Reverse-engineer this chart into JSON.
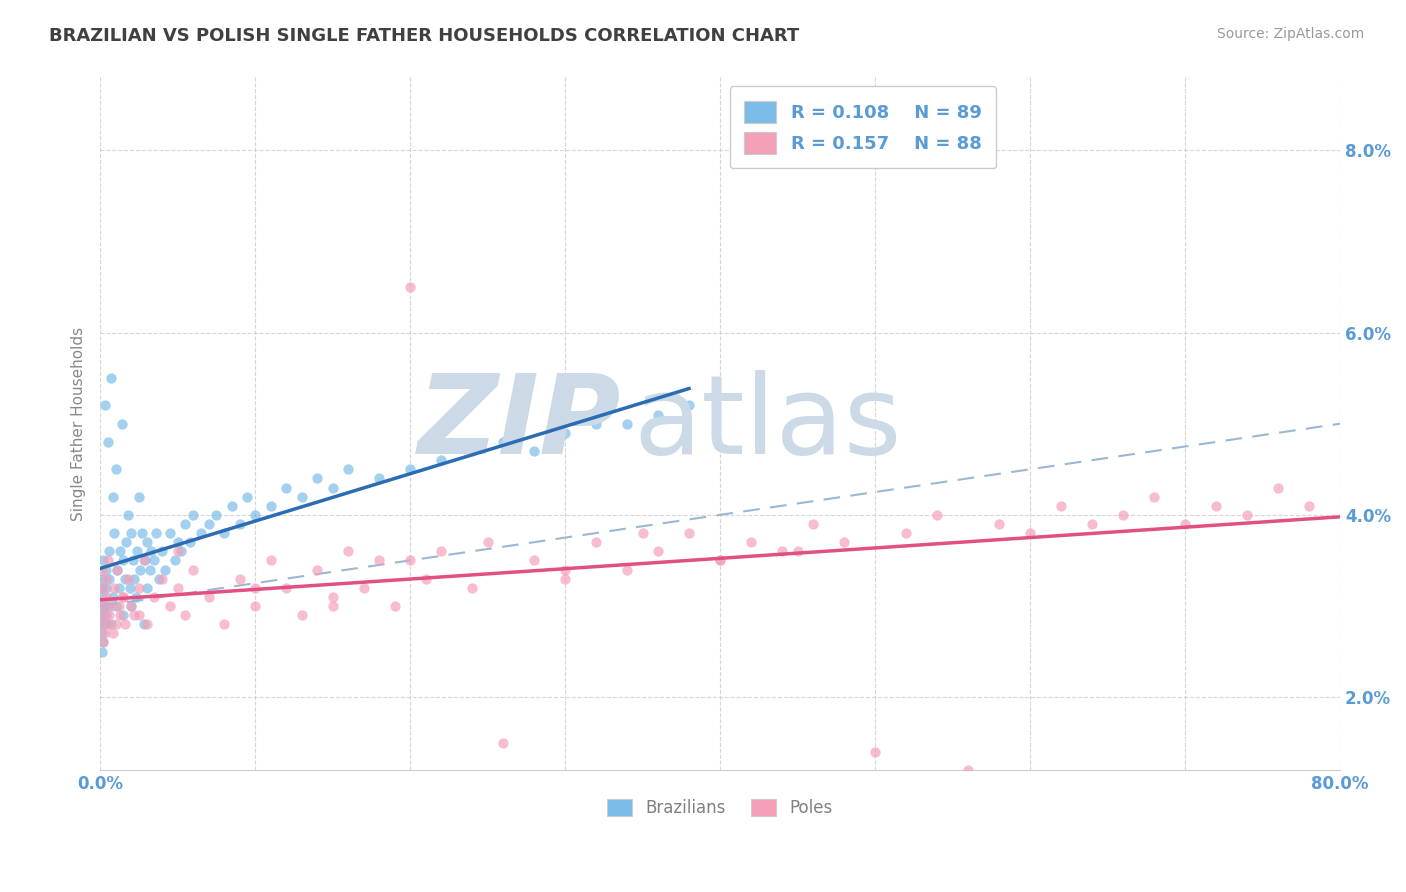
{
  "title": "BRAZILIAN VS POLISH SINGLE FATHER HOUSEHOLDS CORRELATION CHART",
  "source": "Source: ZipAtlas.com",
  "ylabel": "Single Father Households",
  "xlim": [
    0.0,
    80.0
  ],
  "ylim": [
    1.2,
    8.8
  ],
  "yticks": [
    2.0,
    4.0,
    6.0,
    8.0
  ],
  "xticks": [
    0.0,
    10.0,
    20.0,
    30.0,
    40.0,
    50.0,
    60.0,
    70.0,
    80.0
  ],
  "legend_R1": "R = 0.108",
  "legend_N1": "N = 89",
  "legend_R2": "R = 0.157",
  "legend_N2": "N = 88",
  "blue_color": "#7bbde8",
  "pink_color": "#f4a0b8",
  "blue_line_color": "#2b6cb5",
  "pink_line_color": "#e05080",
  "dash_line_color": "#99b8d4",
  "watermark_color": "#ccd9e6",
  "background_color": "#ffffff",
  "title_color": "#404040",
  "axis_label_color": "#5b9bd5",
  "legend_color": "#5b9bd5",
  "blue_scatter_x": [
    0.1,
    0.1,
    0.1,
    0.1,
    0.1,
    0.15,
    0.15,
    0.2,
    0.2,
    0.2,
    0.25,
    0.3,
    0.3,
    0.35,
    0.4,
    0.4,
    0.5,
    0.5,
    0.6,
    0.6,
    0.7,
    0.7,
    0.8,
    0.8,
    0.9,
    1.0,
    1.0,
    1.1,
    1.2,
    1.3,
    1.4,
    1.5,
    1.5,
    1.6,
    1.7,
    1.8,
    1.9,
    2.0,
    2.0,
    2.1,
    2.2,
    2.3,
    2.4,
    2.5,
    2.6,
    2.7,
    2.8,
    2.9,
    3.0,
    3.0,
    3.2,
    3.3,
    3.5,
    3.6,
    3.8,
    4.0,
    4.2,
    4.5,
    4.8,
    5.0,
    5.2,
    5.5,
    5.8,
    6.0,
    6.5,
    7.0,
    7.5,
    8.0,
    8.5,
    9.0,
    9.5,
    10.0,
    11.0,
    12.0,
    13.0,
    14.0,
    15.0,
    16.0,
    18.0,
    20.0,
    22.0,
    24.0,
    26.0,
    28.0,
    30.0,
    32.0,
    34.0,
    36.0,
    38.0
  ],
  "blue_scatter_y": [
    3.2,
    2.9,
    2.7,
    2.5,
    3.0,
    3.3,
    2.8,
    3.1,
    2.6,
    3.5,
    3.0,
    2.8,
    5.2,
    3.2,
    2.9,
    3.4,
    3.0,
    4.8,
    3.3,
    3.6,
    2.8,
    5.5,
    4.2,
    3.1,
    3.8,
    3.0,
    4.5,
    3.4,
    3.2,
    3.6,
    5.0,
    3.5,
    2.9,
    3.3,
    3.7,
    4.0,
    3.2,
    3.8,
    3.0,
    3.5,
    3.3,
    3.1,
    3.6,
    4.2,
    3.4,
    3.8,
    2.8,
    3.5,
    3.2,
    3.7,
    3.4,
    3.6,
    3.5,
    3.8,
    3.3,
    3.6,
    3.4,
    3.8,
    3.5,
    3.7,
    3.6,
    3.9,
    3.7,
    4.0,
    3.8,
    3.9,
    4.0,
    3.8,
    4.1,
    3.9,
    4.2,
    4.0,
    4.1,
    4.3,
    4.2,
    4.4,
    4.3,
    4.5,
    4.4,
    4.5,
    4.6,
    4.7,
    4.8,
    4.7,
    4.9,
    5.0,
    5.0,
    5.1,
    5.2
  ],
  "pink_scatter_x": [
    0.1,
    0.1,
    0.15,
    0.2,
    0.2,
    0.25,
    0.3,
    0.35,
    0.4,
    0.5,
    0.5,
    0.6,
    0.7,
    0.8,
    0.9,
    1.0,
    1.1,
    1.2,
    1.3,
    1.5,
    1.6,
    1.8,
    2.0,
    2.2,
    2.5,
    2.8,
    3.0,
    3.5,
    4.0,
    4.5,
    5.0,
    5.5,
    6.0,
    7.0,
    8.0,
    9.0,
    10.0,
    11.0,
    12.0,
    13.0,
    14.0,
    15.0,
    16.0,
    17.0,
    18.0,
    19.0,
    20.0,
    21.0,
    22.0,
    24.0,
    26.0,
    28.0,
    30.0,
    32.0,
    34.0,
    36.0,
    38.0,
    40.0,
    42.0,
    44.0,
    46.0,
    48.0,
    50.0,
    52.0,
    54.0,
    56.0,
    58.0,
    60.0,
    62.0,
    64.0,
    66.0,
    68.0,
    70.0,
    72.0,
    74.0,
    76.0,
    78.0,
    45.0,
    40.0,
    35.0,
    30.0,
    25.0,
    20.0,
    15.0,
    10.0,
    5.0,
    2.5,
    1.5
  ],
  "pink_scatter_y": [
    3.4,
    2.8,
    3.0,
    2.6,
    3.2,
    2.9,
    2.7,
    3.1,
    3.3,
    2.8,
    3.5,
    2.9,
    3.0,
    2.7,
    3.2,
    2.8,
    3.4,
    3.0,
    2.9,
    3.1,
    2.8,
    3.3,
    3.0,
    2.9,
    3.2,
    3.5,
    2.8,
    3.1,
    3.3,
    3.0,
    3.2,
    2.9,
    3.4,
    3.1,
    2.8,
    3.3,
    3.0,
    3.5,
    3.2,
    2.9,
    3.4,
    3.1,
    3.6,
    3.2,
    3.5,
    3.0,
    6.5,
    3.3,
    3.6,
    3.2,
    1.5,
    3.5,
    3.3,
    3.7,
    3.4,
    3.6,
    3.8,
    3.5,
    3.7,
    3.6,
    3.9,
    3.7,
    1.4,
    3.8,
    4.0,
    1.2,
    3.9,
    3.8,
    4.1,
    3.9,
    4.0,
    4.2,
    3.9,
    4.1,
    4.0,
    4.3,
    4.1,
    3.6,
    3.5,
    3.8,
    3.4,
    3.7,
    3.5,
    3.0,
    3.2,
    3.6,
    2.9,
    3.1
  ]
}
